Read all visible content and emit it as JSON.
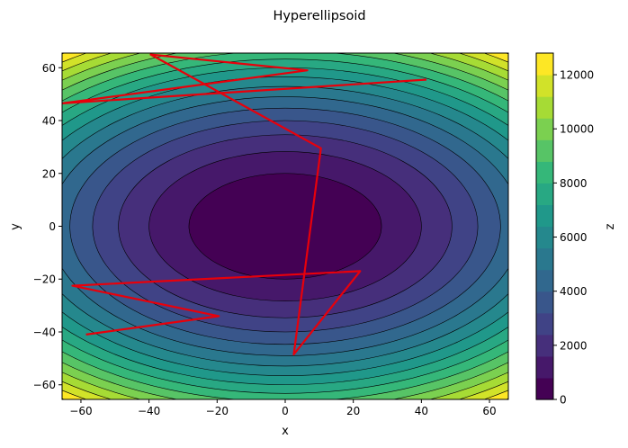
{
  "chart_data": {
    "type": "contour",
    "title": "Hyperellipsoid",
    "xlabel": "x",
    "ylabel": "y",
    "colorbar_label": "z",
    "function": "x^2 + 2*y^2",
    "xlim": [
      -65.536,
      65.536
    ],
    "ylim": [
      -65.536,
      65.536
    ],
    "x_ticks": [
      -60,
      -40,
      -20,
      0,
      20,
      40,
      60
    ],
    "y_ticks": [
      -60,
      -40,
      -20,
      0,
      20,
      40,
      60
    ],
    "x_tick_labels": [
      "−60",
      "−40",
      "−20",
      "0",
      "20",
      "40",
      "60"
    ],
    "y_tick_labels": [
      "−60",
      "−40",
      "−20",
      "0",
      "20",
      "40",
      "60"
    ],
    "levels": [
      0,
      800,
      1600,
      2400,
      3200,
      4000,
      4800,
      5600,
      6400,
      7200,
      8000,
      8800,
      9600,
      10400,
      11200,
      12000,
      12800
    ],
    "colorbar_ticks": [
      0,
      2000,
      4000,
      6000,
      8000,
      10000,
      12000
    ],
    "colorbar_tick_labels": [
      "0",
      "2000",
      "4000",
      "6000",
      "8000",
      "10000",
      "12000"
    ],
    "colormap": "viridis",
    "path": {
      "color": "#e8000b",
      "x": [
        -58.5,
        -19.5,
        -62.5,
        22.0,
        2.5,
        10.5,
        -39.5,
        6.5,
        -65.5,
        41.5
      ],
      "y": [
        -41.0,
        -34.0,
        -22.5,
        -17.0,
        -48.5,
        29.5,
        65.0,
        59.0,
        46.5,
        55.5
      ]
    }
  }
}
